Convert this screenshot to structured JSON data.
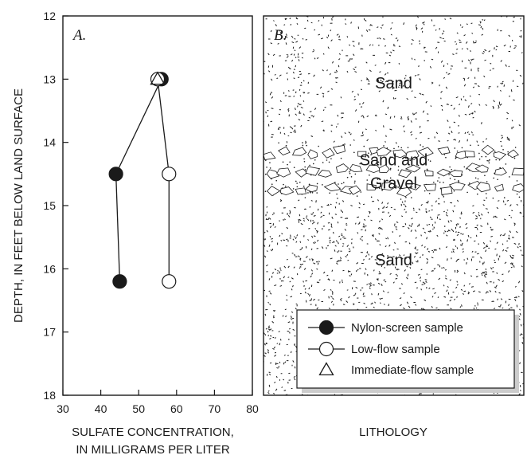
{
  "chart_data": [
    {
      "type": "scatter",
      "panel_label": "A.",
      "xlabel_line1": "SULFATE CONCENTRATION,",
      "xlabel_line2": "IN MILLIGRAMS PER LITER",
      "ylabel": "DEPTH, IN FEET BELOW LAND SURFACE",
      "xlim": [
        30,
        80
      ],
      "ylim": [
        12,
        18
      ],
      "y_inverted": true,
      "xticks": [
        30,
        40,
        50,
        60,
        70,
        80
      ],
      "yticks": [
        12,
        13,
        14,
        15,
        16,
        17,
        18
      ],
      "grid": false,
      "series": [
        {
          "name": "Nylon-screen sample",
          "marker": "filled-circle",
          "points": [
            {
              "x": 56,
              "y": 13.0
            },
            {
              "x": 44,
              "y": 14.5
            },
            {
              "x": 45,
              "y": 16.2
            }
          ]
        },
        {
          "name": "Low-flow sample",
          "marker": "open-circle",
          "points": [
            {
              "x": 55,
              "y": 13.0
            },
            {
              "x": 58,
              "y": 14.5
            },
            {
              "x": 58,
              "y": 16.2
            }
          ]
        },
        {
          "name": "Immediate-flow sample",
          "marker": "open-triangle",
          "points": [
            {
              "x": 55,
              "y": 13.0
            }
          ]
        }
      ]
    },
    {
      "type": "diagram",
      "panel_label": "B.",
      "xlabel": "LITHOLOGY",
      "layers": [
        {
          "label_lines": [
            "Sand"
          ],
          "top": 12,
          "bottom": 14,
          "pattern": "dots"
        },
        {
          "label_lines": [
            "Sand and",
            "Gravel"
          ],
          "top": 14,
          "bottom": 14.9,
          "pattern": "gravel"
        },
        {
          "label_lines": [
            "Sand"
          ],
          "top": 14.9,
          "bottom": 18,
          "pattern": "dense-dots"
        }
      ]
    }
  ],
  "legend": {
    "placement": "bottom-right of panel B",
    "entries": [
      {
        "label": "Nylon-screen sample",
        "marker": "filled-circle"
      },
      {
        "label": "Low-flow sample",
        "marker": "open-circle"
      },
      {
        "label": "Immediate-flow sample",
        "marker": "open-triangle"
      }
    ]
  },
  "colors": {
    "ink": "#1a1a1a",
    "background": "#ffffff",
    "legend_shadow": "#cccccc"
  }
}
